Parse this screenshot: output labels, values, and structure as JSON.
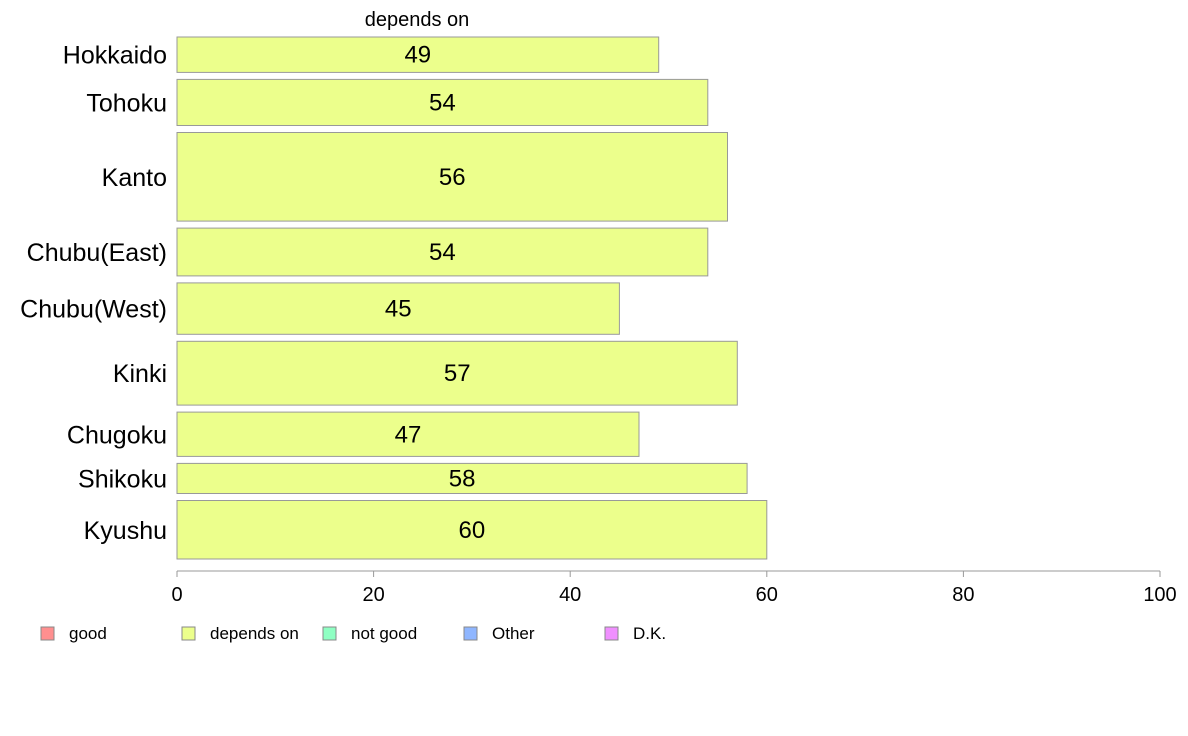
{
  "chart_data": {
    "type": "bar",
    "orientation": "horizontal",
    "title": "depends on",
    "categories": [
      "Hokkaido",
      "Tohoku",
      "Kanto",
      "Chubu(East)",
      "Chubu(West)",
      "Kinki",
      "Chugoku",
      "Shikoku",
      "Kyushu"
    ],
    "series": [
      {
        "name": "depends on",
        "values": [
          49,
          54,
          56,
          54,
          45,
          57,
          47,
          58,
          60
        ],
        "color": "#ecff8c"
      }
    ],
    "data_labels": [
      "49",
      "54",
      "56",
      "54",
      "45",
      "57",
      "47",
      "58",
      "60"
    ],
    "category_weights": [
      1,
      1.3,
      2.5,
      1.35,
      1.45,
      1.8,
      1.25,
      0.85,
      1.65
    ],
    "xlim": [
      0,
      100
    ],
    "x_ticks": [
      0,
      20,
      40,
      60,
      80,
      100
    ],
    "x_tick_labels": [
      "0",
      "20",
      "40",
      "60",
      "80",
      "100"
    ],
    "grid": false,
    "legend": {
      "placement": "bottom",
      "items": [
        {
          "label": "good",
          "color": "#ff8f8f"
        },
        {
          "label": "depends on",
          "color": "#ecff8c"
        },
        {
          "label": "not good",
          "color": "#8fffc3"
        },
        {
          "label": "Other",
          "color": "#8fb6ff"
        },
        {
          "label": "D.K.",
          "color": "#f08fff"
        }
      ]
    },
    "bar_border_color": "#999999",
    "axis_color": "#999999"
  }
}
